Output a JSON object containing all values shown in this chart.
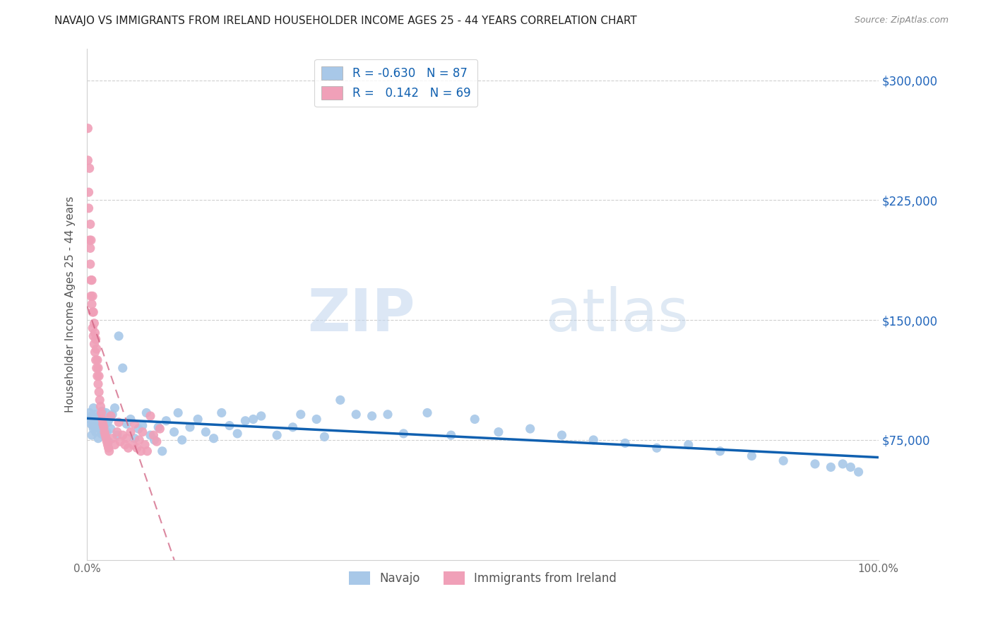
{
  "title": "NAVAJO VS IMMIGRANTS FROM IRELAND HOUSEHOLDER INCOME AGES 25 - 44 YEARS CORRELATION CHART",
  "source": "Source: ZipAtlas.com",
  "ylabel": "Householder Income Ages 25 - 44 years",
  "watermark_zip": "ZIP",
  "watermark_atlas": "atlas",
  "xlim": [
    0.0,
    1.0
  ],
  "ylim": [
    0,
    320000
  ],
  "yticks": [
    0,
    75000,
    150000,
    225000,
    300000
  ],
  "ytick_labels_right": [
    "",
    "$75,000",
    "$150,000",
    "$225,000",
    "$300,000"
  ],
  "xtick_labels": [
    "0.0%",
    "100.0%"
  ],
  "legend_blue_r": "-0.630",
  "legend_blue_n": "87",
  "legend_pink_r": "0.142",
  "legend_pink_n": "69",
  "navajo_color": "#a8c8e8",
  "ireland_color": "#f0a0b8",
  "navajo_line_color": "#1060b0",
  "ireland_line_color": "#d06080",
  "navajo_x": [
    0.003,
    0.004,
    0.005,
    0.006,
    0.006,
    0.007,
    0.008,
    0.008,
    0.009,
    0.01,
    0.01,
    0.011,
    0.012,
    0.013,
    0.014,
    0.015,
    0.016,
    0.017,
    0.018,
    0.019,
    0.02,
    0.021,
    0.022,
    0.023,
    0.024,
    0.025,
    0.026,
    0.027,
    0.028,
    0.03,
    0.032,
    0.035,
    0.038,
    0.04,
    0.045,
    0.05,
    0.055,
    0.06,
    0.065,
    0.07,
    0.075,
    0.08,
    0.085,
    0.09,
    0.095,
    0.1,
    0.11,
    0.115,
    0.12,
    0.13,
    0.14,
    0.15,
    0.16,
    0.17,
    0.18,
    0.19,
    0.2,
    0.21,
    0.22,
    0.24,
    0.26,
    0.27,
    0.29,
    0.3,
    0.32,
    0.34,
    0.36,
    0.38,
    0.4,
    0.43,
    0.46,
    0.49,
    0.52,
    0.56,
    0.6,
    0.64,
    0.68,
    0.72,
    0.76,
    0.8,
    0.84,
    0.88,
    0.92,
    0.94,
    0.955,
    0.965,
    0.975
  ],
  "navajo_y": [
    92000,
    88000,
    85000,
    90000,
    78000,
    84000,
    95000,
    82000,
    88000,
    86000,
    91000,
    80000,
    85000,
    88000,
    76000,
    83000,
    90000,
    87000,
    79000,
    93000,
    84000,
    78000,
    89000,
    85000,
    92000,
    80000,
    86000,
    74000,
    88000,
    82000,
    91000,
    95000,
    78000,
    140000,
    120000,
    85000,
    88000,
    76000,
    82000,
    84000,
    92000,
    78000,
    75000,
    83000,
    68000,
    87000,
    80000,
    92000,
    75000,
    83000,
    88000,
    80000,
    76000,
    92000,
    84000,
    79000,
    87000,
    88000,
    90000,
    78000,
    83000,
    91000,
    88000,
    77000,
    100000,
    91000,
    90000,
    91000,
    79000,
    92000,
    78000,
    88000,
    80000,
    82000,
    78000,
    75000,
    73000,
    70000,
    72000,
    68000,
    65000,
    62000,
    60000,
    58000,
    60000,
    58000,
    55000
  ],
  "ireland_x": [
    0.001,
    0.001,
    0.002,
    0.002,
    0.003,
    0.003,
    0.004,
    0.004,
    0.004,
    0.005,
    0.005,
    0.005,
    0.006,
    0.006,
    0.007,
    0.007,
    0.007,
    0.008,
    0.008,
    0.009,
    0.009,
    0.01,
    0.01,
    0.011,
    0.011,
    0.012,
    0.012,
    0.013,
    0.013,
    0.014,
    0.014,
    0.015,
    0.015,
    0.016,
    0.017,
    0.018,
    0.019,
    0.02,
    0.021,
    0.022,
    0.023,
    0.024,
    0.025,
    0.026,
    0.027,
    0.028,
    0.03,
    0.032,
    0.035,
    0.038,
    0.04,
    0.042,
    0.045,
    0.048,
    0.05,
    0.052,
    0.055,
    0.058,
    0.06,
    0.063,
    0.066,
    0.068,
    0.07,
    0.073,
    0.076,
    0.08,
    0.084,
    0.088,
    0.092
  ],
  "ireland_y": [
    270000,
    250000,
    230000,
    220000,
    245000,
    200000,
    210000,
    195000,
    185000,
    175000,
    200000,
    165000,
    160000,
    175000,
    155000,
    165000,
    145000,
    140000,
    155000,
    135000,
    148000,
    130000,
    142000,
    125000,
    138000,
    120000,
    132000,
    115000,
    125000,
    110000,
    120000,
    105000,
    115000,
    100000,
    96000,
    92000,
    88000,
    85000,
    83000,
    80000,
    78000,
    76000,
    74000,
    72000,
    70000,
    68000,
    90000,
    76000,
    72000,
    80000,
    86000,
    74000,
    78000,
    72000,
    76000,
    70000,
    80000,
    72000,
    85000,
    70000,
    75000,
    68000,
    80000,
    72000,
    68000,
    90000,
    78000,
    74000,
    82000
  ]
}
